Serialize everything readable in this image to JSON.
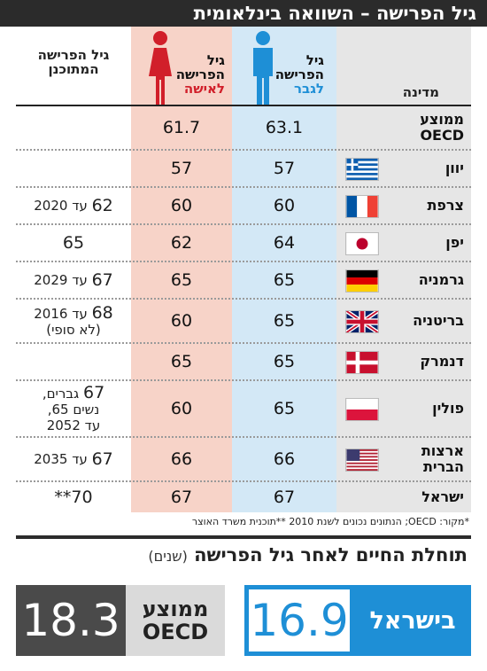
{
  "title": "גיל הפרישה – השוואה בינלאומית",
  "headers": {
    "country": "מדינה",
    "man_line1": "גיל",
    "man_line2": "הפרישה",
    "man_line3": "לגבר",
    "woman_line1": "גיל",
    "woman_line2": "הפרישה",
    "woman_line3": "לאישה",
    "planned_line1": "גיל הפרישה",
    "planned_line2": "המתוכנן"
  },
  "colors": {
    "man": "#1e8fd6",
    "woman": "#d11f2a",
    "dark": "#2b2b2b"
  },
  "chart_data": {
    "type": "table",
    "columns": [
      "מדינה",
      "גיל הפרישה לגבר",
      "גיל הפרישה לאישה",
      "גיל הפרישה המתוכנן"
    ],
    "rows": [
      {
        "country_line1": "ממוצע",
        "country_line2": "OECD",
        "flag": "none",
        "man": "63.1",
        "woman": "61.7",
        "planned": ""
      },
      {
        "country_line1": "יוון",
        "country_line2": "",
        "flag": "greece-flag-icon",
        "man": "57",
        "woman": "57",
        "planned": ""
      },
      {
        "country_line1": "צרפת",
        "country_line2": "",
        "flag": "france-flag-icon",
        "man": "60",
        "woman": "60",
        "planned_num": "62",
        "planned": "עד 2020"
      },
      {
        "country_line1": "יפן",
        "country_line2": "",
        "flag": "japan-flag-icon",
        "man": "64",
        "woman": "62",
        "planned_num": "65",
        "planned": ""
      },
      {
        "country_line1": "גרמניה",
        "country_line2": "",
        "flag": "germany-flag-icon",
        "man": "65",
        "woman": "65",
        "planned_num": "67",
        "planned": "עד 2029"
      },
      {
        "country_line1": "בריטניה",
        "country_line2": "",
        "flag": "uk-flag-icon",
        "man": "65",
        "woman": "60",
        "planned_num": "68",
        "planned": "עד 2016",
        "planned_note": "(לא סופי)"
      },
      {
        "country_line1": "דנמרק",
        "country_line2": "",
        "flag": "denmark-flag-icon",
        "man": "65",
        "woman": "65",
        "planned": ""
      },
      {
        "country_line1": "פולין",
        "country_line2": "",
        "flag": "poland-flag-icon",
        "man": "65",
        "woman": "60",
        "planned_num": "67",
        "planned": "גברים,",
        "planned_note": "נשים 65,",
        "planned_note2": "עד 2052"
      },
      {
        "country_line1": "ארצות",
        "country_line2": "הברית",
        "flag": "usa-flag-icon",
        "man": "66",
        "woman": "66",
        "planned_num": "67",
        "planned": "עד 2035"
      },
      {
        "country_line1": "ישראל",
        "country_line2": "",
        "flag": "none",
        "man": "67",
        "woman": "67",
        "planned_num": "70**",
        "planned": ""
      }
    ]
  },
  "footnote": "*מקור: OECD; הנתונים נכונים לשנת 2010  **תוכנית משרד האוצר",
  "life_expectancy": {
    "title": "תוחלת החיים לאחר גיל הפרישה",
    "unit": "(שנים)",
    "israel_label": "בישראל",
    "israel_value": "16.9",
    "oecd_label_line1": "ממוצע",
    "oecd_label_line2": "OECD",
    "oecd_value": "18.3"
  }
}
